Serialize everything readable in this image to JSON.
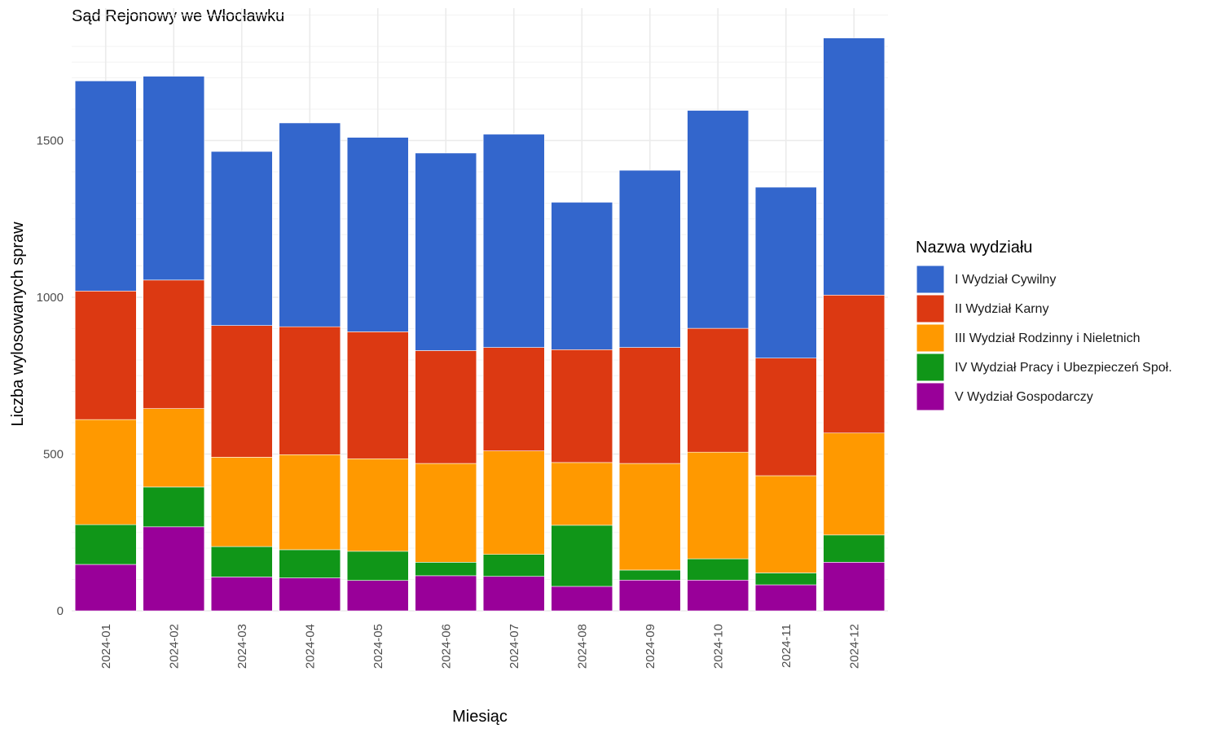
{
  "chart_data": {
    "type": "bar",
    "stacked": true,
    "title": "Sąd Rejonowy we Włocławku",
    "xlabel": "Miesiąc",
    "ylabel": "Liczba wylosowanych spraw",
    "ylim": [
      0,
      1900
    ],
    "yticks": [
      0,
      500,
      1000,
      1500
    ],
    "grid": true,
    "legend_position": "right",
    "legend_title": "Nazwa wydziału",
    "categories": [
      "2024-01",
      "2024-02",
      "2024-03",
      "2024-04",
      "2024-05",
      "2024-06",
      "2024-07",
      "2024-08",
      "2024-09",
      "2024-10",
      "2024-11",
      "2024-12"
    ],
    "series": [
      {
        "name": "I Wydział Cywilny",
        "color": "#3366cc",
        "values": [
          670,
          650,
          555,
          650,
          620,
          630,
          680,
          470,
          565,
          695,
          545,
          820
        ]
      },
      {
        "name": "II Wydział Karny",
        "color": "#dc3912",
        "values": [
          410,
          410,
          420,
          408,
          405,
          360,
          330,
          360,
          370,
          395,
          375,
          440
        ]
      },
      {
        "name": "III Wydział Rodzinny i Nieletnich",
        "color": "#ff9900",
        "values": [
          335,
          250,
          285,
          303,
          295,
          315,
          330,
          200,
          340,
          340,
          310,
          325
        ]
      },
      {
        "name": "IV Wydział Pracy i Ubezpieczeń Społ.",
        "color": "#109618",
        "values": [
          127,
          127,
          97,
          90,
          93,
          43,
          70,
          195,
          32,
          68,
          38,
          87
        ]
      },
      {
        "name": "V Wydział Gospodarczy",
        "color": "#990099",
        "values": [
          148,
          268,
          108,
          105,
          97,
          112,
          110,
          78,
          98,
          98,
          83,
          155
        ]
      }
    ]
  }
}
